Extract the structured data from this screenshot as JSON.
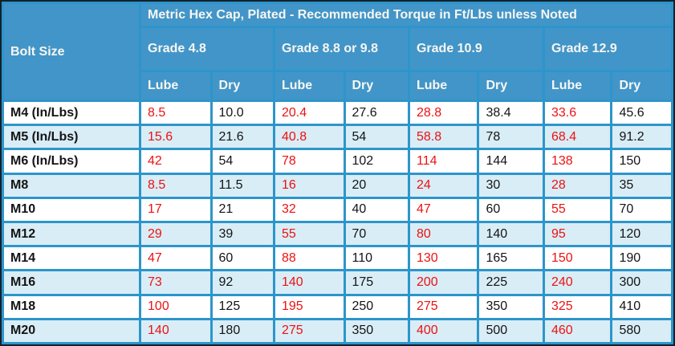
{
  "table": {
    "title": "Metric Hex Cap, Plated - Recommended Torque in Ft/Lbs unless Noted",
    "bolt_size_header": "Bolt Size",
    "grade_groups": [
      {
        "label": "Grade 4.8"
      },
      {
        "label": "Grade 8.8 or 9.8"
      },
      {
        "label": "Grade 10.9"
      },
      {
        "label": "Grade 12.9"
      }
    ],
    "sub_headers": [
      "Lube",
      "Dry"
    ],
    "rows": [
      {
        "bolt": "M4 (In/Lbs)",
        "values": [
          "8.5",
          "10.0",
          "20.4",
          "27.6",
          "28.8",
          "38.4",
          "33.6",
          "45.6"
        ]
      },
      {
        "bolt": "M5 (In/Lbs)",
        "values": [
          "15.6",
          "21.6",
          "40.8",
          "54",
          "58.8",
          "78",
          "68.4",
          "91.2"
        ]
      },
      {
        "bolt": "M6 (In/Lbs)",
        "values": [
          "42",
          "54",
          "78",
          "102",
          "114",
          "144",
          "138",
          "150"
        ]
      },
      {
        "bolt": "M8",
        "values": [
          "8.5",
          "11.5",
          "16",
          "20",
          "24",
          "30",
          "28",
          "35"
        ]
      },
      {
        "bolt": "M10",
        "values": [
          "17",
          "21",
          "32",
          "40",
          "47",
          "60",
          "55",
          "70"
        ]
      },
      {
        "bolt": "M12",
        "values": [
          "29",
          "39",
          "55",
          "70",
          "80",
          "140",
          "95",
          "120"
        ]
      },
      {
        "bolt": "M14",
        "values": [
          "47",
          "60",
          "88",
          "110",
          "130",
          "165",
          "150",
          "190"
        ]
      },
      {
        "bolt": "M16",
        "values": [
          "73",
          "92",
          "140",
          "175",
          "200",
          "225",
          "240",
          "300"
        ]
      },
      {
        "bolt": "M18",
        "values": [
          "100",
          "125",
          "195",
          "250",
          "275",
          "350",
          "325",
          "410"
        ]
      },
      {
        "bolt": "M20",
        "values": [
          "140",
          "180",
          "275",
          "350",
          "400",
          "500",
          "460",
          "580"
        ]
      }
    ]
  },
  "colors": {
    "frame_dark": "#15202b",
    "grid_blue": "#2d95cb",
    "header_blue": "#4295c8",
    "row_alt_blue": "#d9edf6",
    "row_white": "#ffffff",
    "lube_red": "#ee1111",
    "text_dark": "#141414",
    "header_text": "#f7f7f3"
  }
}
